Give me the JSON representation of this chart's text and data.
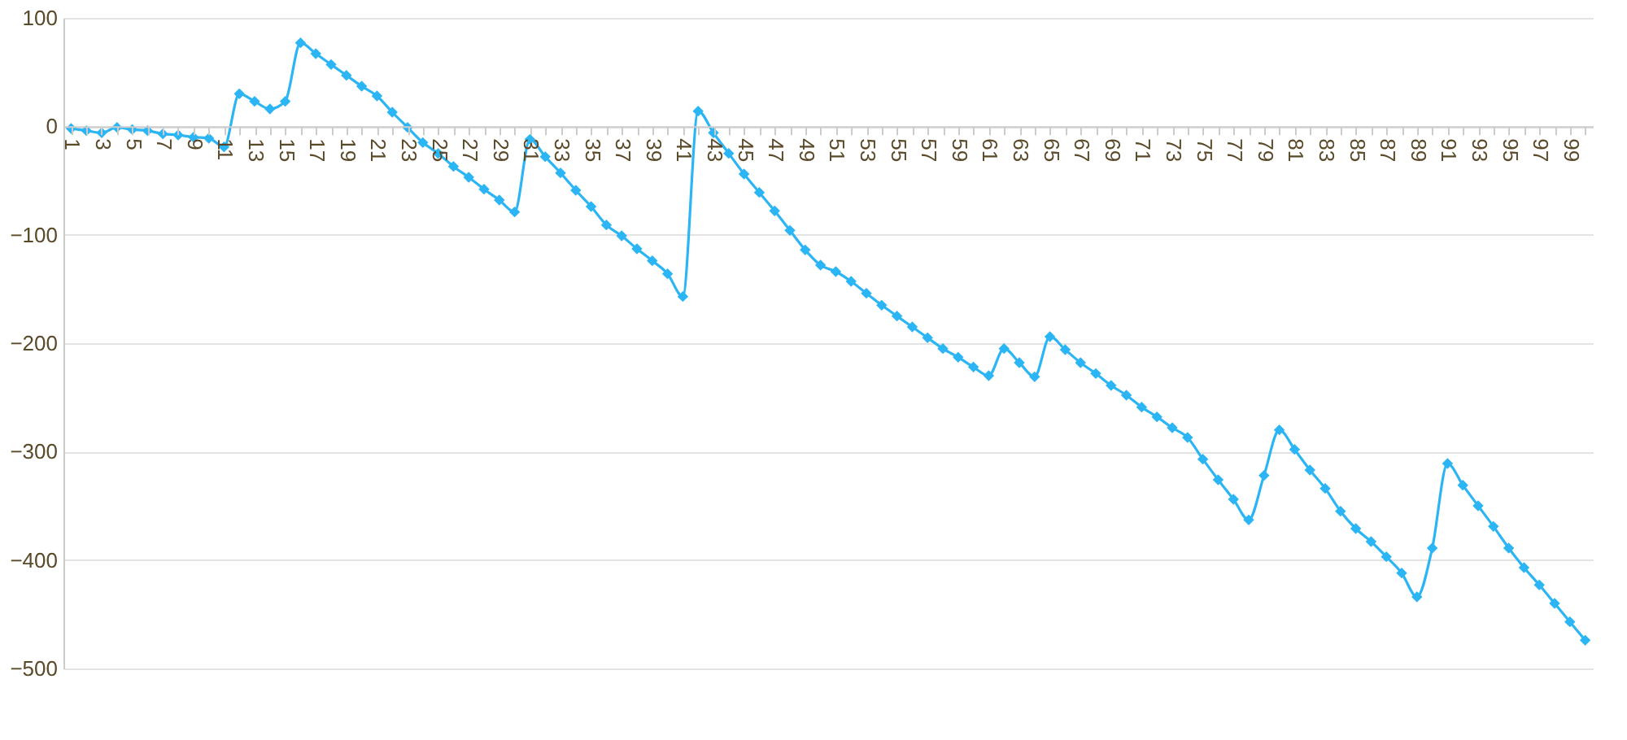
{
  "chart_data": {
    "type": "line",
    "categories": [
      "1",
      null,
      "3",
      null,
      "5",
      null,
      "7",
      null,
      "9",
      null,
      "11",
      null,
      "13",
      null,
      "15",
      null,
      "17",
      null,
      "19",
      null,
      "21",
      null,
      "23",
      null,
      "25",
      null,
      "27",
      null,
      "29",
      null,
      "31",
      null,
      "33",
      null,
      "35",
      null,
      "37",
      null,
      "39",
      null,
      "41",
      null,
      "43",
      null,
      "45",
      null,
      "47",
      null,
      "49",
      null,
      "51",
      null,
      "53",
      null,
      "55",
      null,
      "57",
      null,
      "59",
      null,
      "61",
      null,
      "63",
      null,
      "65",
      null,
      "67",
      null,
      "69",
      null,
      "71",
      null,
      "73",
      null,
      "75",
      null,
      "77",
      null,
      "79",
      null,
      "81",
      null,
      "83",
      null,
      "85",
      null,
      "87",
      null,
      "89",
      null,
      "91",
      null,
      "93",
      null,
      "95",
      null,
      "97",
      null,
      "99",
      null
    ],
    "series": [
      {
        "color": "#2bb5f5",
        "values": [
          -2,
          -4,
          -6,
          -1,
          -3,
          -4,
          -7,
          -8,
          -10,
          -11,
          -19,
          30,
          23,
          16,
          23,
          77,
          67,
          57,
          47,
          37,
          28,
          13,
          -1,
          -15,
          -25,
          -37,
          -47,
          -58,
          -68,
          -79,
          -12,
          -28,
          -43,
          -59,
          -74,
          -91,
          -101,
          -113,
          -124,
          -136,
          -157,
          14,
          -6,
          -25,
          -44,
          -61,
          -78,
          -96,
          -114,
          -128,
          -134,
          -143,
          -154,
          -165,
          -175,
          -185,
          -195,
          -205,
          -213,
          -222,
          -230,
          -205,
          -218,
          -231,
          -194,
          -206,
          -218,
          -228,
          -239,
          -248,
          -259,
          -268,
          -278,
          -287,
          -307,
          -326,
          -344,
          -363,
          -322,
          -280,
          -298,
          -317,
          -334,
          -355,
          -371,
          -383,
          -397,
          -412,
          -434,
          -389,
          -311,
          -331,
          -350,
          -369,
          -389,
          -407,
          -423,
          -440,
          -457,
          -474
        ]
      }
    ],
    "ylim": [
      -500,
      100
    ],
    "yticks": [
      -500,
      -400,
      -300,
      -200,
      -100,
      0,
      100
    ],
    "grid": "y",
    "marker": "diamond",
    "line_style": "solid"
  }
}
